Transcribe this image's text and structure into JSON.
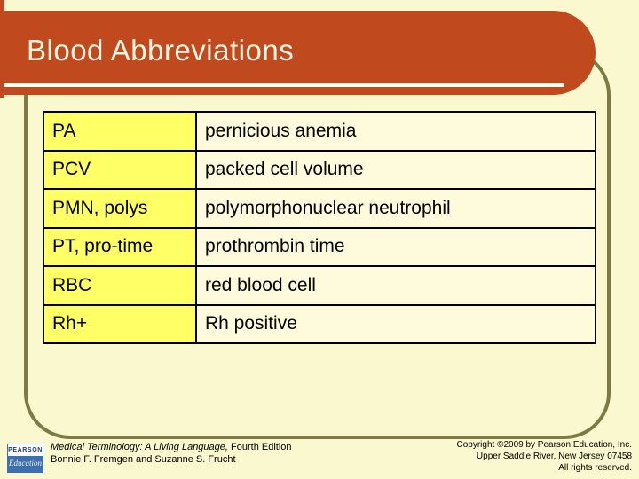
{
  "slide": {
    "title": "Blood Abbreviations",
    "table": {
      "rows": [
        {
          "abbr": "PA",
          "meaning": "pernicious anemia"
        },
        {
          "abbr": "PCV",
          "meaning": "packed cell volume"
        },
        {
          "abbr": "PMN, polys",
          "meaning": "polymorphonuclear neutrophil"
        },
        {
          "abbr": "PT, pro-time",
          "meaning": "prothrombin time"
        },
        {
          "abbr": "RBC",
          "meaning": "red blood cell"
        },
        {
          "abbr": "Rh+",
          "meaning": "Rh positive"
        }
      ]
    }
  },
  "footer": {
    "logo": {
      "line1": "PEARSON",
      "line2": "Education"
    },
    "book_title": "Medical Terminology: A Living Language,",
    "book_edition": " Fourth Edition",
    "authors": "Bonnie F. Fremgen and Suzanne S. Frucht",
    "copyright_line1": "Copyright ©2009 by Pearson Education, Inc.",
    "copyright_line2": "Upper Saddle River, New Jersey 07458",
    "copyright_line3": "All rights reserved."
  },
  "colors": {
    "background": "#FAF8CE",
    "banner": "#C04A1E",
    "banner_text": "#FCF7E2",
    "frame": "#7C7B45",
    "abbr_cell": "#FFFF66",
    "meaning_cell": "#FDFBDC",
    "table_border": "#000000",
    "logo_blue": "#3D6FB2"
  }
}
